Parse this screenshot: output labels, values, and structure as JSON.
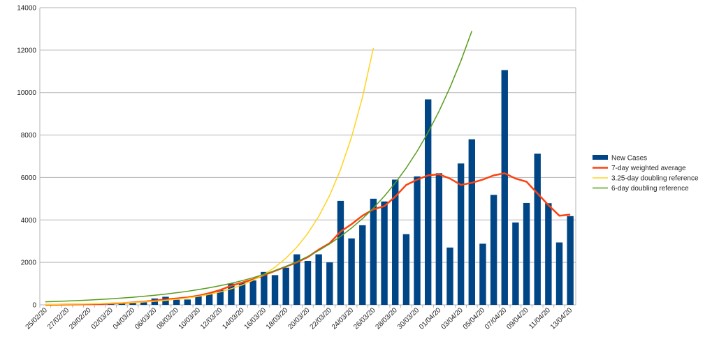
{
  "chart_data": {
    "type": "bar",
    "categories": [
      "25/02/20",
      null,
      "27/02/20",
      null,
      "29/02/20",
      null,
      "02/03/20",
      null,
      "04/03/20",
      null,
      "06/03/20",
      null,
      "08/03/20",
      null,
      "10/03/20",
      null,
      "12/03/20",
      null,
      "14/03/20",
      null,
      "16/03/20",
      null,
      "18/03/20",
      null,
      "20/03/20",
      null,
      "22/03/20",
      null,
      "24/03/20",
      null,
      "26/03/20",
      null,
      "28/03/20",
      null,
      "30/03/20",
      null,
      "01/04/20",
      null,
      "03/04/20",
      null,
      "05/04/20",
      null,
      "07/04/20",
      null,
      "09/04/20",
      null,
      "11/04/20",
      null,
      "13/04/20"
    ],
    "series": [
      {
        "name": "New Cases",
        "type": "bar",
        "color": "#004586",
        "values": [
          0,
          0,
          0,
          0,
          0,
          10,
          30,
          50,
          80,
          130,
          300,
          380,
          240,
          250,
          400,
          550,
          700,
          1000,
          1050,
          1150,
          1550,
          1400,
          1750,
          2380,
          2070,
          2380,
          2000,
          4900,
          3130,
          3750,
          5000,
          4870,
          5900,
          3330,
          6050,
          9680,
          6200,
          2700,
          6660,
          7800,
          2880,
          5180,
          11060,
          3880,
          4800,
          7120,
          4790,
          2940,
          4180
        ]
      },
      {
        "name": "7-day weighted average",
        "type": "line",
        "color": "#ff420e",
        "values": [
          5,
          10,
          15,
          20,
          30,
          40,
          60,
          80,
          110,
          150,
          200,
          250,
          300,
          350,
          430,
          550,
          700,
          900,
          1050,
          1200,
          1400,
          1600,
          1800,
          2000,
          2250,
          2600,
          2900,
          3450,
          3800,
          4200,
          4500,
          4650,
          5100,
          5650,
          5900,
          6100,
          6150,
          5950,
          5650,
          5750,
          5900,
          6100,
          6200,
          5950,
          5800,
          5250,
          4700,
          4200,
          4250
        ]
      },
      {
        "name": "3.25-day doubling reference",
        "type": "line",
        "color": "#ffd320",
        "values": [
          20,
          25,
          31,
          38,
          47,
          59,
          73,
          90,
          111,
          137,
          170,
          211,
          261,
          322,
          399,
          494,
          611,
          757,
          936,
          1159,
          1434,
          1775,
          2197,
          2720,
          3366,
          4166,
          5156,
          6382,
          7899,
          9776,
          12100,
          null,
          null,
          null,
          null,
          null,
          null,
          null,
          null,
          null,
          null,
          null,
          null,
          null,
          null,
          null,
          null,
          null,
          null
        ]
      },
      {
        "name": "6-day doubling reference",
        "type": "line",
        "color": "#579d1c",
        "values": [
          143,
          160,
          180,
          202,
          226,
          254,
          285,
          320,
          359,
          403,
          452,
          507,
          570,
          639,
          718,
          806,
          904,
          1015,
          1140,
          1279,
          1436,
          1612,
          1809,
          2031,
          2280,
          2559,
          2872,
          3224,
          3619,
          4062,
          4560,
          5118,
          5745,
          6449,
          7239,
          8126,
          9121,
          10238,
          11492,
          12900,
          null,
          null,
          null,
          null,
          null,
          null,
          null,
          null,
          null
        ]
      }
    ],
    "ylim": [
      0,
      14000
    ],
    "yticks": [
      0,
      2000,
      4000,
      6000,
      8000,
      10000,
      12000,
      14000
    ],
    "grid": true,
    "legend": "right"
  }
}
